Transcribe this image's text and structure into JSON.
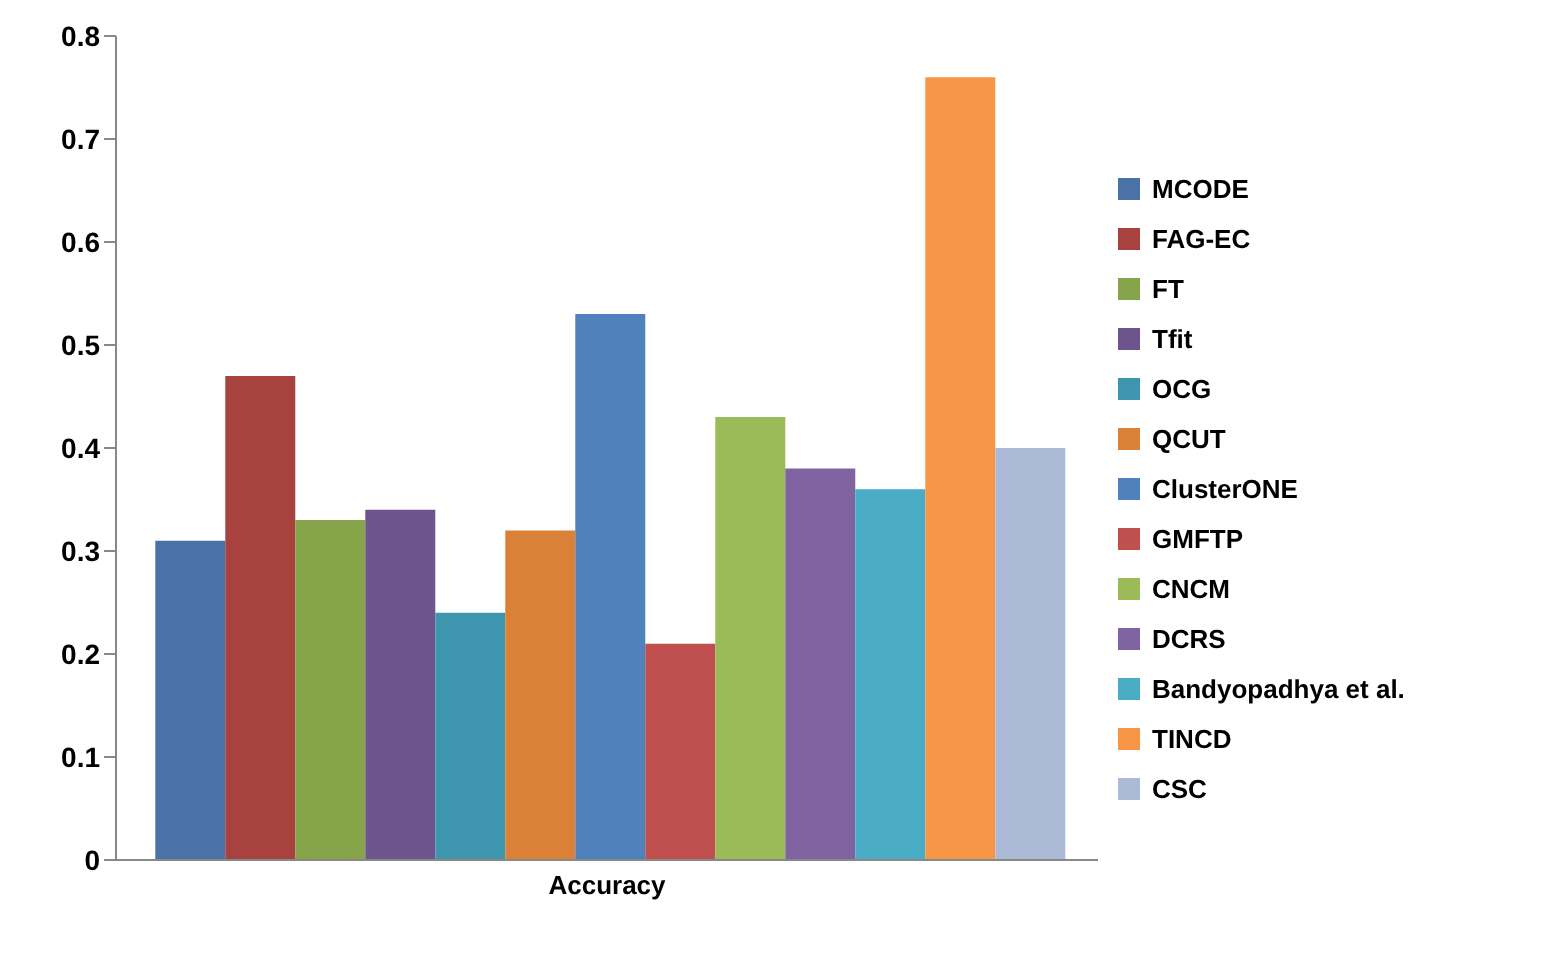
{
  "chart_data": {
    "type": "bar",
    "categories": [
      "Accuracy"
    ],
    "ylim": [
      0,
      0.8
    ],
    "yticks": [
      0,
      0.1,
      0.2,
      0.3,
      0.4,
      0.5,
      0.6,
      0.7,
      0.8
    ],
    "grid": false,
    "legend": "right",
    "series": [
      {
        "name": "MCODE",
        "color": "#4a71a8",
        "values": [
          0.31
        ]
      },
      {
        "name": "FAG-EC",
        "color": "#a8423f",
        "values": [
          0.47
        ]
      },
      {
        "name": "FT",
        "color": "#86a44a",
        "values": [
          0.33
        ]
      },
      {
        "name": "Tfit",
        "color": "#6e548d",
        "values": [
          0.34
        ]
      },
      {
        "name": "OCG",
        "color": "#3d96ae",
        "values": [
          0.24
        ]
      },
      {
        "name": "QCUT",
        "color": "#da8137",
        "values": [
          0.32
        ]
      },
      {
        "name": "ClusterONE",
        "color": "#4f81bd",
        "values": [
          0.53
        ]
      },
      {
        "name": "GMFTP",
        "color": "#c0504d",
        "values": [
          0.21
        ]
      },
      {
        "name": "CNCM",
        "color": "#9bbb59",
        "values": [
          0.43
        ]
      },
      {
        "name": "DCRS",
        "color": "#8064a2",
        "values": [
          0.38
        ]
      },
      {
        "name": "Bandyopadhya et al.",
        "color": "#4bacc6",
        "values": [
          0.36
        ]
      },
      {
        "name": "TINCD",
        "color": "#f79646",
        "values": [
          0.76
        ]
      },
      {
        "name": "CSC",
        "color": "#aabad7",
        "values": [
          0.4
        ]
      }
    ]
  }
}
